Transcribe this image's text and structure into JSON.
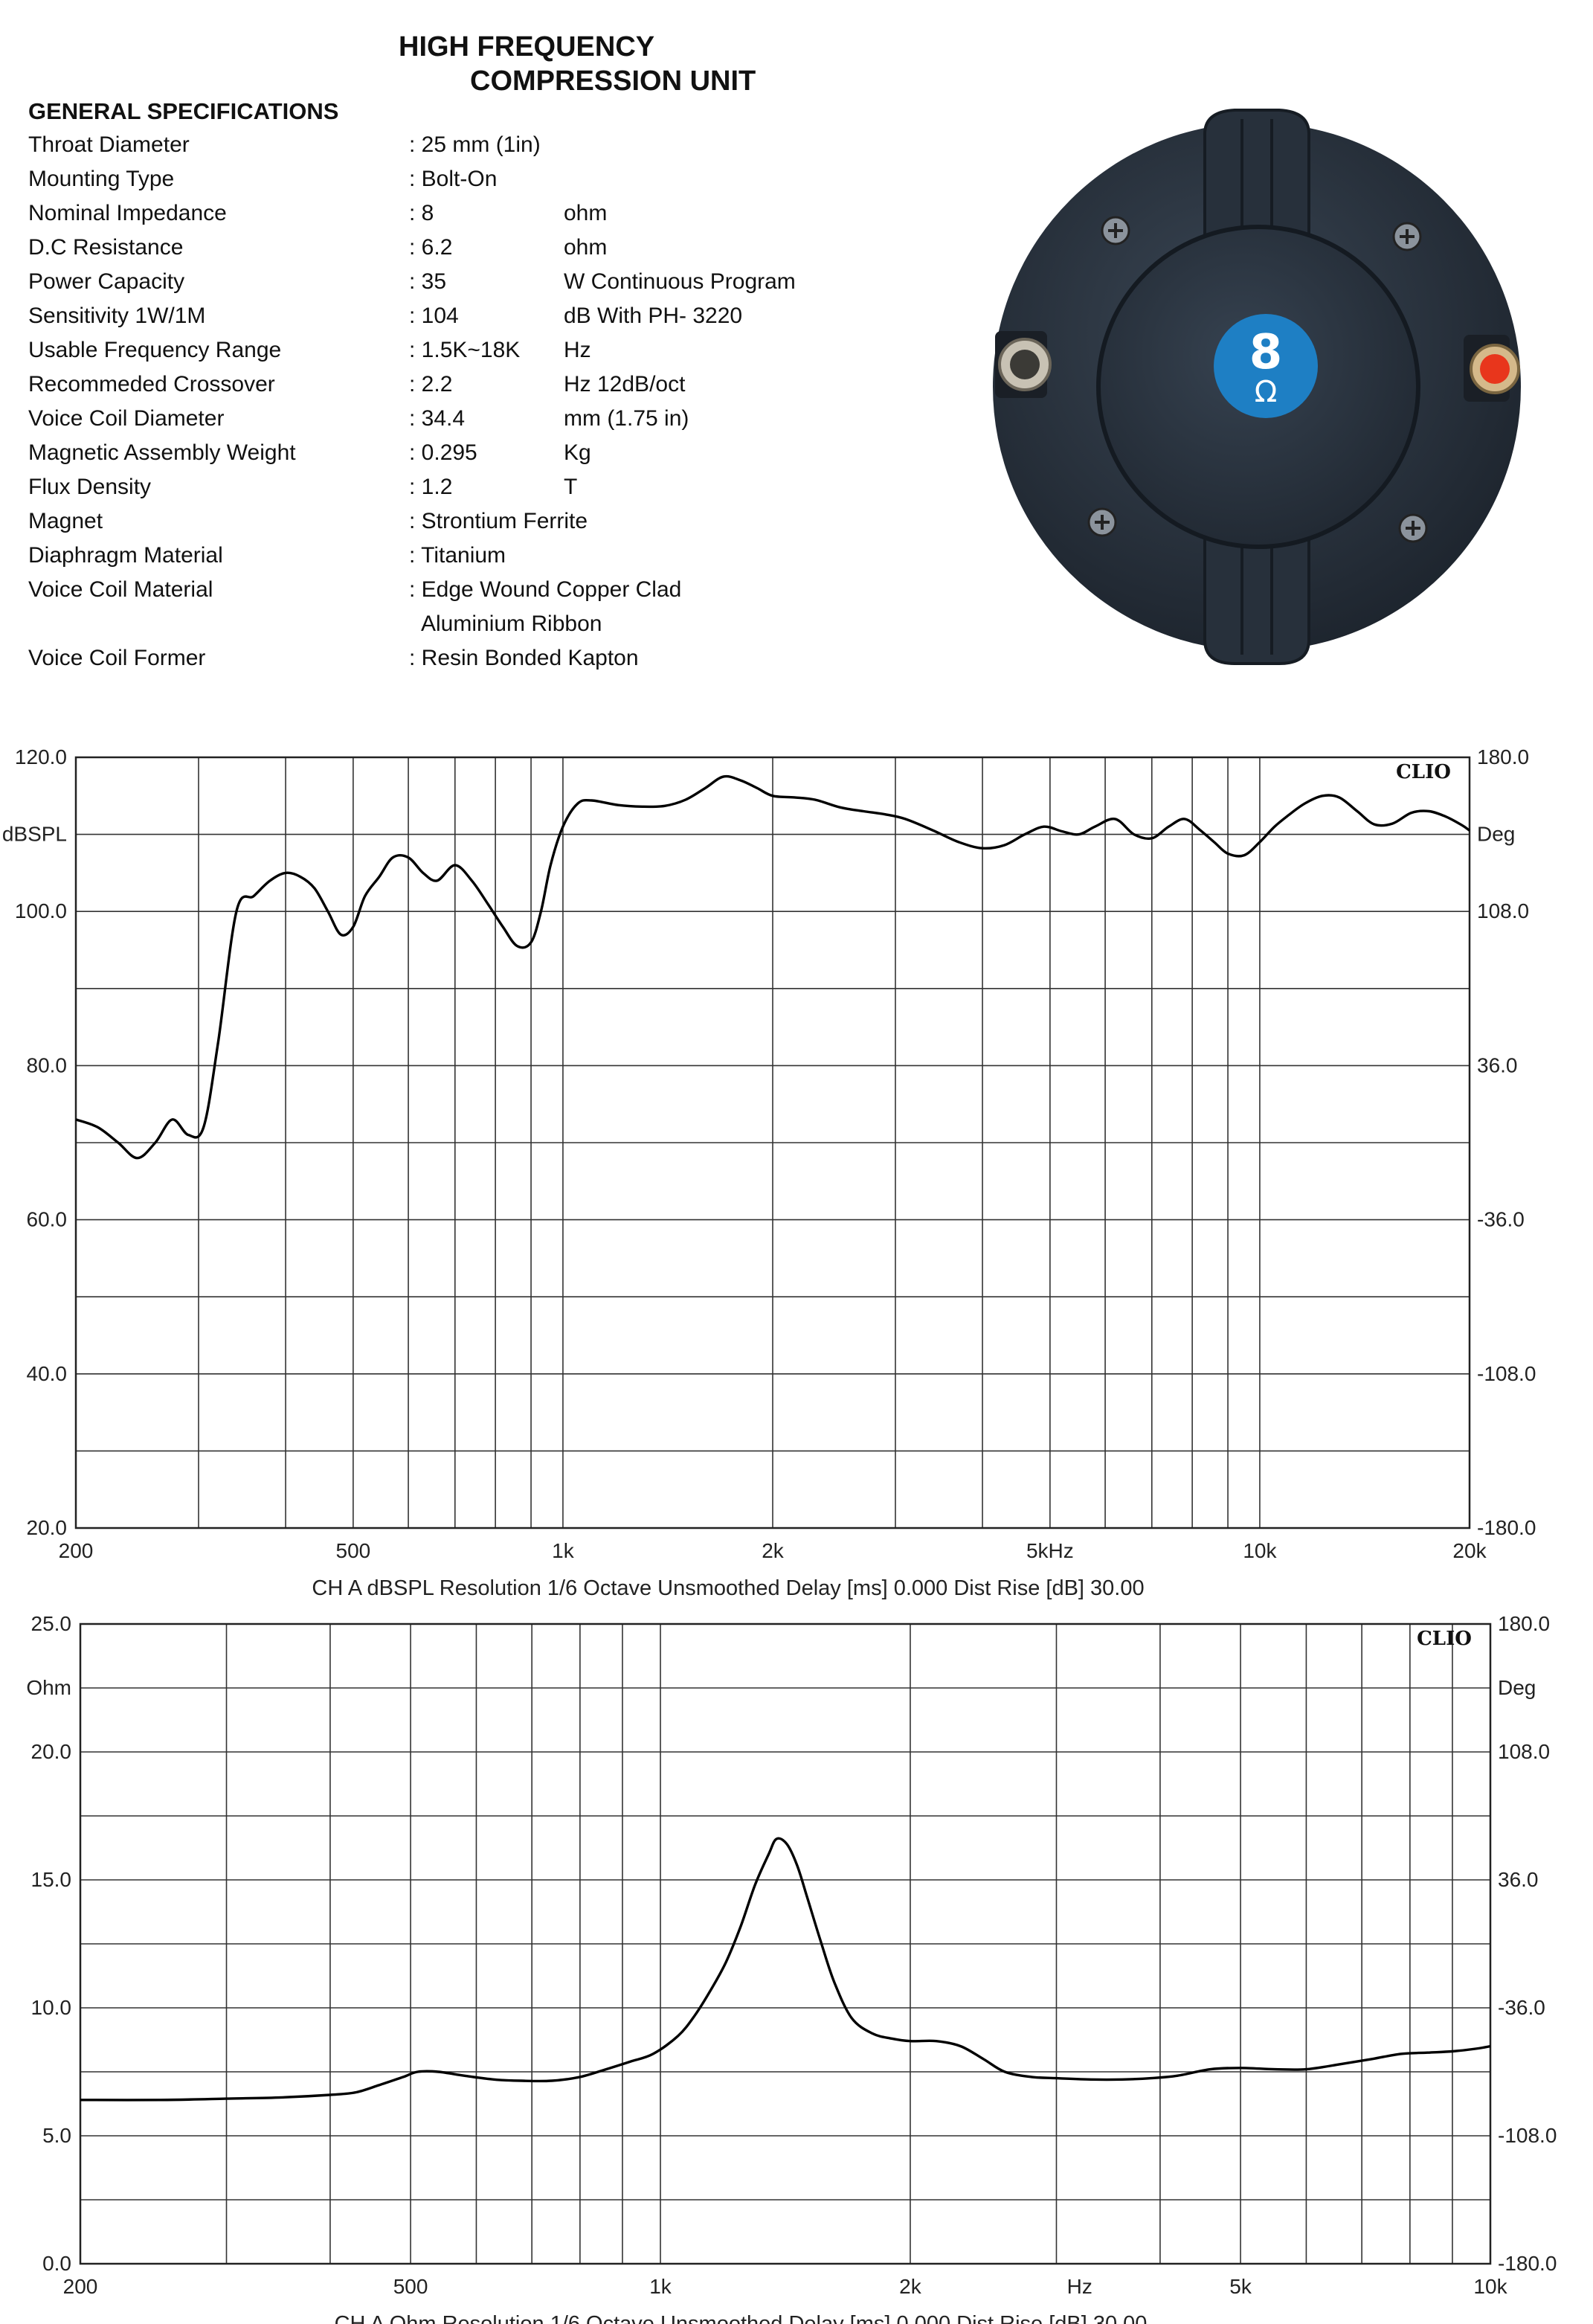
{
  "header": {
    "title_line1": "HIGH FREQUENCY",
    "title_line2": "COMPRESSION UNIT",
    "spec_heading": "GENERAL SPECIFICATIONS"
  },
  "specs": [
    {
      "label": "Throat Diameter",
      "value": ": 25 mm (1in)",
      "unit": ""
    },
    {
      "label": "Mounting Type",
      "value": ": Bolt-On",
      "unit": ""
    },
    {
      "label": "Nominal Impedance",
      "value": ": 8",
      "unit": "ohm"
    },
    {
      "label": "D.C Resistance",
      "value": ": 6.2",
      "unit": "ohm"
    },
    {
      "label": "Power Capacity",
      "value": ": 35",
      "unit": "W Continuous Program"
    },
    {
      "label": "Sensitivity 1W/1M",
      "value": ": 104",
      "unit": "dB With PH- 3220"
    },
    {
      "label": "Usable Frequency Range",
      "value": ": 1.5K~18K",
      "unit": "Hz"
    },
    {
      "label": "Recommeded Crossover",
      "value": ": 2.2",
      "unit": "Hz 12dB/oct"
    },
    {
      "label": "Voice Coil Diameter",
      "value": ": 34.4",
      "unit": "mm    (1.75 in)"
    },
    {
      "label": "Magnetic Assembly Weight",
      "value": ": 0.295",
      "unit": "Kg"
    },
    {
      "label": "Flux Density",
      "value": ": 1.2",
      "unit": "T"
    },
    {
      "label": "Magnet",
      "value": ": Strontium Ferrite",
      "unit": ""
    },
    {
      "label": "Diaphragm Material",
      "value": ": Titanium",
      "unit": ""
    },
    {
      "label": "Voice Coil Material",
      "value": ": Edge Wound Copper Clad",
      "unit": ""
    },
    {
      "label": "",
      "value": "",
      "unit": "",
      "extra": "Aluminium Ribbon"
    },
    {
      "label": "Voice Coil Former",
      "value": ": Resin Bonded Kapton",
      "unit": ""
    }
  ],
  "product": {
    "badge_number": "8",
    "badge_unit": "Ω",
    "colors": {
      "body": "#2b3440",
      "badge": "#1e7fc4",
      "terminal_red": "#e8361c"
    }
  },
  "chart_data": [
    {
      "type": "line",
      "title": "",
      "watermark": "CLIO",
      "x_scale": "log",
      "xlim": [
        200,
        20000
      ],
      "ylim": [
        20,
        120
      ],
      "right_ylim": [
        -180,
        180
      ],
      "grid": true,
      "y_ticks": [
        "120.0",
        "100.0",
        "80.0",
        "60.0",
        "40.0",
        "20.0"
      ],
      "y_unit_label": "dBSPL",
      "right_ticks": [
        "180.0",
        "108.0",
        "36.0",
        "-36.0",
        "-108.0",
        "-180.0"
      ],
      "right_unit_label": "Deg",
      "x_ticks": [
        {
          "label": "200",
          "value": 200
        },
        {
          "label": "500",
          "value": 500
        },
        {
          "label": "1k",
          "value": 1000
        },
        {
          "label": "2k",
          "value": 2000
        },
        {
          "label": "5kHz",
          "value": 5000
        },
        {
          "label": "10k",
          "value": 10000
        },
        {
          "label": "20k",
          "value": 20000
        }
      ],
      "footer": "CH A   dBSPL   Resolution 1/6 Octave   Unsmoothed   Delay [ms] 0.000   Dist Rise [dB] 30.00",
      "series": [
        {
          "x": [
            200,
            215,
            230,
            245,
            260,
            275,
            290,
            305,
            320,
            340,
            360,
            380,
            400,
            420,
            440,
            460,
            480,
            500,
            520,
            545,
            570,
            600,
            630,
            660,
            700,
            740,
            780,
            820,
            860,
            900,
            930,
            960,
            1000,
            1050,
            1100,
            1200,
            1300,
            1400,
            1500,
            1600,
            1700,
            1800,
            1900,
            2000,
            2150,
            2300,
            2500,
            2700,
            2900,
            3100,
            3400,
            3700,
            4000,
            4300,
            4600,
            4900,
            5200,
            5500,
            5800,
            6200,
            6600,
            7000,
            7400,
            7800,
            8200,
            8600,
            9000,
            9500,
            10000,
            10500,
            11000,
            11600,
            12300,
            13000,
            13800,
            14600,
            15500,
            16500,
            17500,
            18500,
            19500,
            20000
          ],
          "y": [
            73,
            72,
            70,
            68,
            70,
            73,
            71,
            72,
            83,
            100,
            102,
            104,
            105,
            104.5,
            103,
            100,
            97,
            98,
            102,
            104.5,
            107,
            107,
            105,
            104,
            106,
            104,
            101,
            98,
            95.5,
            96,
            100,
            106,
            111,
            114,
            114.4,
            113.8,
            113.6,
            113.7,
            114.5,
            116,
            117.5,
            117,
            116,
            115,
            114.8,
            114.5,
            113.5,
            113,
            112.6,
            112,
            110.5,
            109,
            108.2,
            108.6,
            110,
            111,
            110.4,
            110,
            111,
            112,
            110,
            109.5,
            111,
            112,
            110.6,
            109,
            107.5,
            107.3,
            109,
            111,
            112.5,
            114,
            115,
            114.8,
            113,
            111.3,
            111.4,
            112.8,
            113,
            112.3,
            111.2,
            110.5
          ]
        }
      ]
    },
    {
      "type": "line",
      "title": "",
      "watermark": "CLIO",
      "x_scale": "log",
      "xlim": [
        200,
        10000
      ],
      "ylim": [
        0,
        25
      ],
      "right_ylim": [
        -180,
        180
      ],
      "grid": true,
      "y_ticks": [
        "25.0",
        "20.0",
        "15.0",
        "10.0",
        "5.0",
        "0.0"
      ],
      "y_unit_label": "Ohm",
      "right_ticks": [
        "180.0",
        "108.0",
        "36.0",
        "-36.0",
        "-108.0",
        "-180.0"
      ],
      "right_unit_label": "Deg",
      "x_ticks": [
        {
          "label": "200",
          "value": 200
        },
        {
          "label": "500",
          "value": 500
        },
        {
          "label": "1k",
          "value": 1000
        },
        {
          "label": "2k",
          "value": 2000
        },
        {
          "label": "Hz",
          "value": 3200
        },
        {
          "label": "5k",
          "value": 5000
        },
        {
          "label": "10k",
          "value": 10000
        }
      ],
      "footer": "CH A   Ohm   Resolution 1/6 Octave   Unsmoothed   Delay [ms] 0.000   Dist Rise [dB] 30.00",
      "series": [
        {
          "x": [
            200,
            250,
            300,
            350,
            400,
            430,
            460,
            490,
            510,
            540,
            580,
            630,
            680,
            740,
            800,
            860,
            920,
            980,
            1050,
            1100,
            1150,
            1200,
            1250,
            1300,
            1350,
            1380,
            1420,
            1460,
            1500,
            1560,
            1620,
            1700,
            1800,
            1900,
            2000,
            2150,
            2300,
            2450,
            2600,
            2800,
            3000,
            3300,
            3600,
            3900,
            4200,
            4600,
            5000,
            5500,
            6000,
            6600,
            7200,
            7800,
            8400,
            9000,
            9600,
            10000
          ],
          "y": [
            6.4,
            6.4,
            6.45,
            6.5,
            6.6,
            6.7,
            7.0,
            7.3,
            7.5,
            7.5,
            7.35,
            7.2,
            7.15,
            7.15,
            7.3,
            7.6,
            7.9,
            8.2,
            8.9,
            9.7,
            10.7,
            11.8,
            13.2,
            14.8,
            16.0,
            16.6,
            16.4,
            15.6,
            14.4,
            12.6,
            11.0,
            9.6,
            9.0,
            8.8,
            8.7,
            8.7,
            8.5,
            8.0,
            7.5,
            7.3,
            7.25,
            7.2,
            7.2,
            7.25,
            7.35,
            7.6,
            7.65,
            7.6,
            7.6,
            7.8,
            8.0,
            8.2,
            8.25,
            8.3,
            8.4,
            8.5
          ]
        }
      ]
    }
  ]
}
